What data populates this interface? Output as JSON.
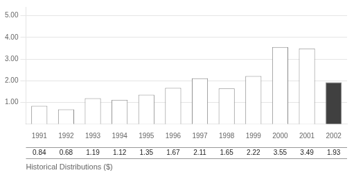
{
  "chart_data": {
    "type": "bar",
    "categories": [
      "1991",
      "1992",
      "1993",
      "1994",
      "1995",
      "1996",
      "1997",
      "1998",
      "1999",
      "2000",
      "2001",
      "2002"
    ],
    "values": [
      0.84,
      0.68,
      1.19,
      1.12,
      1.35,
      1.67,
      2.11,
      1.65,
      2.22,
      3.55,
      3.49,
      1.93
    ],
    "colors": [
      "white",
      "white",
      "white",
      "white",
      "white",
      "white",
      "white",
      "white",
      "white",
      "white",
      "white",
      "#404040"
    ],
    "ylim": [
      0,
      5.4
    ],
    "yticks": [
      {
        "value": 1,
        "label": "1.00"
      },
      {
        "value": 2,
        "label": "2.00"
      },
      {
        "value": 3,
        "label": "3.00"
      },
      {
        "value": 4,
        "label": "4.00"
      },
      {
        "value": 5,
        "label": "5.00"
      }
    ],
    "xlabel": "Historical Distributions ($)",
    "grid": true,
    "data_labels": true
  }
}
